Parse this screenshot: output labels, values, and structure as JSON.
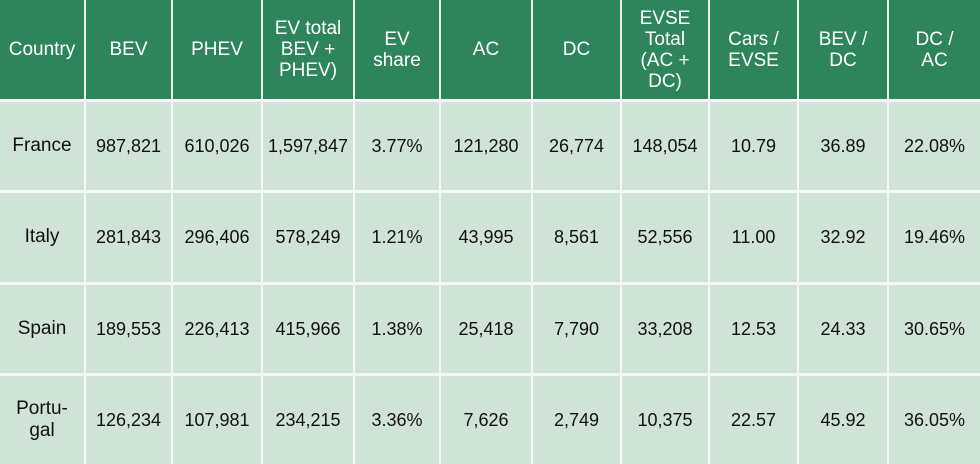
{
  "table": {
    "headers": [
      "Country",
      "BEV",
      "PHEV",
      "EV total\nBEV +\nPHEV)",
      "EV\nshare",
      "AC",
      "DC",
      "EVSE\nTotal\n(AC +\nDC)",
      "Cars /\nEVSE",
      "BEV /\nDC",
      "DC /\nAC"
    ],
    "rows": [
      [
        "France",
        "987,821",
        "610,026",
        "1,597,847",
        "3.77%",
        "121,280",
        "26,774",
        "148,054",
        "10.79",
        "36.89",
        "22.08%"
      ],
      [
        "Italy",
        "281,843",
        "296,406",
        "578,249",
        "1.21%",
        "43,995",
        "8,561",
        "52,556",
        "11.00",
        "32.92",
        "19.46%"
      ],
      [
        "Spain",
        "189,553",
        "226,413",
        "415,966",
        "1.38%",
        "25,418",
        "7,790",
        "33,208",
        "12.53",
        "24.33",
        "30.65%"
      ],
      [
        "Portu-\ngal",
        "126,234",
        "107,981",
        "234,215",
        "3.36%",
        "7,626",
        "2,749",
        "10,375",
        "22.57",
        "45.92",
        "36.05%"
      ]
    ]
  },
  "colors": {
    "header_bg": "#2e855c",
    "header_text": "#ffffff",
    "cell_bg": "#cfe3d6",
    "grid": "#f4f7f5"
  }
}
